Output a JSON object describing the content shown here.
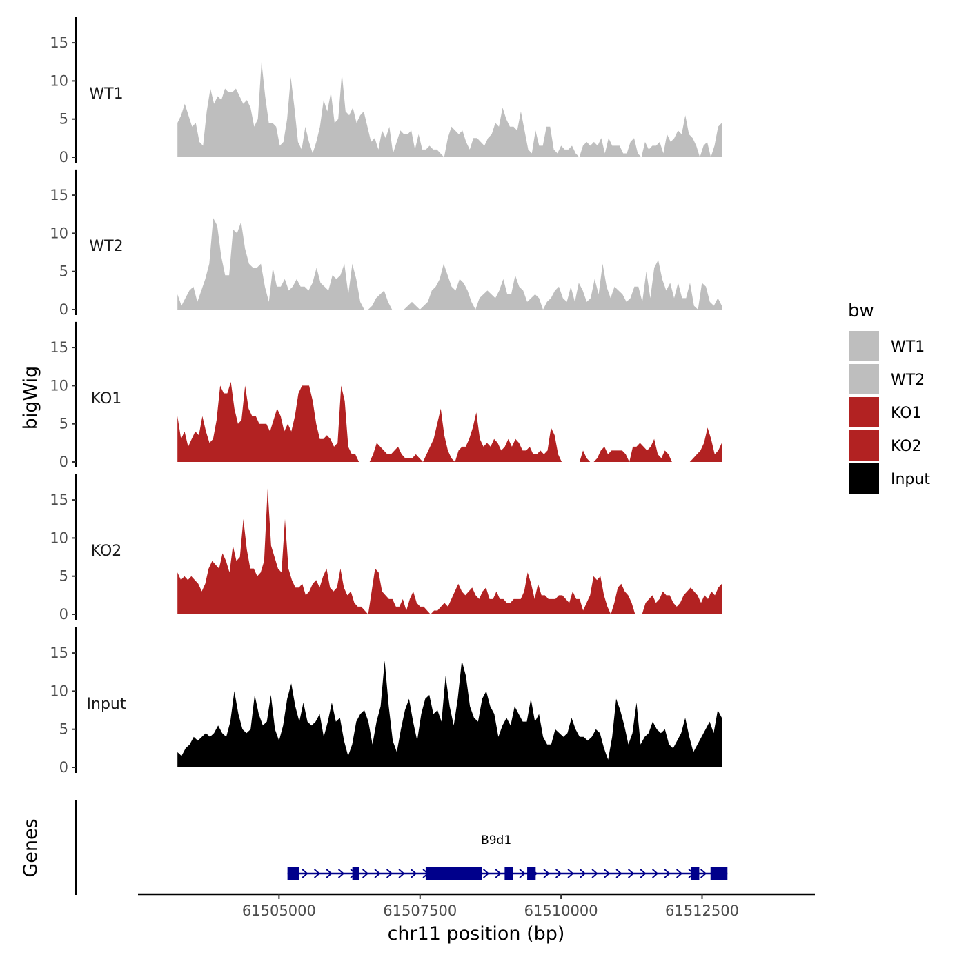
{
  "chart_data": {
    "type": "area",
    "title": "",
    "ylabel": "bigWig",
    "gene_track_label": "Genes",
    "xlabel": "chr11 position (bp)",
    "xlim": [
      61502500,
      61514500
    ],
    "data_range": [
      61503200,
      61512850
    ],
    "ylim": [
      0,
      18
    ],
    "yticks": [
      "0",
      "5",
      "10",
      "15"
    ],
    "xticks": [
      {
        "value": 61505000,
        "label": "61505000"
      },
      {
        "value": 61507500,
        "label": "61507500"
      },
      {
        "value": 61510000,
        "label": "61510000"
      },
      {
        "value": 61512500,
        "label": "61512500"
      }
    ],
    "legend": {
      "title": "bw",
      "position": "right",
      "entries": [
        {
          "label": "WT1",
          "color": "#BEBEBE"
        },
        {
          "label": "WT2",
          "color": "#BEBEBE"
        },
        {
          "label": "KO1",
          "color": "#B22222"
        },
        {
          "label": "KO2",
          "color": "#B22222"
        },
        {
          "label": "Input",
          "color": "#000000"
        }
      ]
    },
    "series": [
      {
        "name": "WT1",
        "color": "#BEBEBE",
        "values": [
          4.5,
          5.5,
          7,
          5.5,
          4,
          4.5,
          2,
          1.5,
          6,
          9,
          7,
          8,
          7.5,
          9,
          8.5,
          8.5,
          9,
          8,
          7,
          7.5,
          6.5,
          4,
          5,
          12.5,
          8,
          4.5,
          4.5,
          4,
          1.5,
          2,
          5,
          10.5,
          6.5,
          2,
          1,
          4,
          2,
          0.5,
          2,
          4,
          7.5,
          6,
          8.5,
          4.5,
          5,
          11,
          6,
          5.5,
          6.5,
          4.5,
          5.5,
          6,
          4,
          2,
          2.5,
          1,
          3.5,
          2.5,
          4,
          0.5,
          2,
          3.5,
          3,
          3,
          3.5,
          1,
          3,
          1,
          1,
          1.5,
          1,
          1,
          0.5,
          0,
          2.5,
          4,
          3.5,
          3,
          3.5,
          2,
          1,
          2.5,
          2.5,
          2,
          1.5,
          2.5,
          3,
          4.5,
          4,
          6.5,
          5,
          4,
          4,
          3.5,
          6,
          3.5,
          1,
          0.5,
          3.5,
          1.5,
          1.5,
          4,
          4,
          1,
          0.5,
          1.5,
          1,
          1,
          1.5,
          0.5,
          0,
          1.5,
          2,
          1.5,
          2,
          1.5,
          2.5,
          0.5,
          2.5,
          1.5,
          1.5,
          1.5,
          0.5,
          0.5,
          2,
          2.5,
          0.5,
          0,
          2,
          1,
          1.5,
          1.5,
          2,
          0.5,
          3,
          2,
          2.5,
          3.5,
          3,
          5.5,
          3,
          2.5,
          1.5,
          0,
          1.5,
          2,
          0,
          1.5,
          4,
          4.5
        ]
      },
      {
        "name": "WT2",
        "color": "#BEBEBE",
        "values": [
          2,
          0.5,
          1.5,
          2.5,
          3,
          1,
          2.5,
          4,
          6,
          12,
          11,
          7,
          4.5,
          4.5,
          10.5,
          10,
          11.5,
          8,
          6,
          5.5,
          5.5,
          6,
          3,
          1,
          5.5,
          3,
          3,
          4,
          2.5,
          3,
          4,
          3,
          3,
          2.5,
          3.5,
          5.5,
          3.5,
          3,
          2.5,
          4.5,
          4,
          4.5,
          6,
          2,
          6,
          4,
          1,
          0,
          0,
          0.5,
          1.5,
          2,
          2.5,
          1,
          0,
          0,
          0,
          0,
          0.5,
          1,
          0.5,
          0,
          0.5,
          1,
          2.5,
          3,
          4,
          6,
          4.5,
          3,
          2.5,
          4,
          3.5,
          2.5,
          1,
          0,
          1.5,
          2,
          2.5,
          2,
          1.5,
          2.5,
          4,
          2,
          2,
          4.5,
          3,
          2.5,
          1,
          1.5,
          2,
          1.5,
          0,
          1,
          1.5,
          2.5,
          3,
          1.5,
          1,
          3,
          1,
          3.5,
          2.5,
          1,
          1.5,
          4,
          2,
          6,
          3,
          1.5,
          3,
          2.5,
          2,
          1,
          1.5,
          3,
          3,
          1,
          5,
          1.5,
          5.5,
          6.5,
          4,
          2.5,
          3.5,
          1.5,
          3.5,
          1.5,
          1.5,
          3.5,
          0.5,
          0,
          3.5,
          3,
          1,
          0.5,
          1.5,
          0.5
        ]
      },
      {
        "name": "KO1",
        "color": "#B22222",
        "values": [
          6,
          3,
          4,
          2,
          3,
          4,
          3.5,
          6,
          4,
          2.5,
          3,
          5.5,
          10,
          9,
          9,
          10.5,
          7,
          5,
          5.5,
          10,
          7,
          6,
          6,
          5,
          5,
          5,
          4,
          5.5,
          7,
          6,
          4,
          5,
          4,
          6,
          9,
          10,
          10,
          10,
          8,
          5,
          3,
          3,
          3.5,
          3,
          2,
          2.5,
          10,
          8,
          2,
          1,
          1,
          0,
          0,
          0,
          0,
          1,
          2.5,
          2,
          1.5,
          1,
          1,
          1.5,
          2,
          1,
          0.5,
          0.5,
          0.5,
          1,
          0.5,
          0,
          1,
          2,
          3,
          5,
          7,
          3.5,
          1.5,
          0.5,
          0,
          1.5,
          2,
          2,
          3,
          4.5,
          6.5,
          3,
          2,
          2.5,
          2,
          3,
          2.5,
          1.5,
          2,
          3,
          2,
          3,
          2.5,
          1.5,
          1.5,
          2,
          1,
          1,
          1.5,
          1,
          1.5,
          4.5,
          3.5,
          1,
          0,
          0,
          0,
          0,
          0,
          0,
          1.5,
          0.5,
          0,
          0,
          0.5,
          1.5,
          2,
          1,
          1.5,
          1.5,
          1.5,
          1.5,
          1,
          0,
          2,
          2,
          2.5,
          2,
          1.5,
          2,
          3,
          1,
          0.5,
          1.5,
          1,
          0,
          0,
          0,
          0,
          0,
          0,
          0.5,
          1,
          1.5,
          2.5,
          4.5,
          3,
          1,
          1.5,
          2.5
        ]
      },
      {
        "name": "KO2",
        "color": "#B22222",
        "values": [
          5.5,
          4.5,
          5,
          4.5,
          5,
          4.5,
          4,
          3,
          4,
          6,
          7,
          6.5,
          6,
          8,
          7,
          5.5,
          9,
          7,
          7.5,
          12.5,
          8.5,
          6,
          6,
          5,
          5.5,
          7,
          16.5,
          9,
          7.5,
          6,
          5.5,
          12.5,
          6,
          4.5,
          3.5,
          3.5,
          4,
          2.5,
          3,
          4,
          4.5,
          3.5,
          5,
          6,
          3.5,
          3,
          3.5,
          6,
          3.5,
          2.5,
          3,
          1.5,
          1,
          1,
          0.5,
          0,
          3,
          6,
          5.5,
          3,
          2.5,
          2,
          2,
          1,
          1,
          2,
          0.5,
          2,
          3,
          1.5,
          1,
          1,
          0.5,
          0,
          0.5,
          0.5,
          1,
          1.5,
          1,
          2,
          3,
          4,
          3,
          2.5,
          3,
          3.5,
          2.5,
          2,
          3,
          3.5,
          2,
          2,
          3,
          2,
          2,
          1.5,
          1.5,
          2,
          2,
          2,
          3,
          5.5,
          4,
          2,
          4,
          2.5,
          2.5,
          2,
          2,
          2,
          2.5,
          2.5,
          2,
          1.5,
          3,
          2,
          2,
          0.5,
          1.5,
          2.5,
          5,
          4.5,
          5,
          2.5,
          1,
          0,
          1.5,
          3.5,
          4,
          3,
          2.5,
          1.5,
          0,
          0,
          0,
          1.5,
          2,
          2.5,
          1.5,
          2,
          3,
          2.5,
          2.5,
          1.5,
          1,
          1.5,
          2.5,
          3,
          3.5,
          3,
          2.5,
          1.5,
          2.5,
          2,
          3,
          2.5,
          3.5,
          4
        ]
      },
      {
        "name": "Input",
        "color": "#000000",
        "values": [
          2,
          1.5,
          2.5,
          3,
          4,
          3.5,
          4,
          4.5,
          4,
          4.5,
          5.5,
          4.5,
          4,
          6,
          10,
          7,
          5,
          4.5,
          5,
          9.5,
          7,
          5.5,
          6,
          9.5,
          5,
          3.5,
          5.5,
          9,
          11,
          8,
          6,
          8.5,
          6,
          5.5,
          6,
          7,
          4,
          6,
          8.5,
          6,
          6.5,
          3.5,
          1.5,
          3,
          6,
          7,
          7.5,
          6,
          3,
          6,
          8,
          14,
          8,
          3.5,
          2,
          5,
          7.5,
          9,
          6,
          3.5,
          7,
          9,
          9.5,
          7,
          7.5,
          6,
          12,
          8,
          5.5,
          9,
          14,
          12,
          8,
          6.5,
          6,
          9,
          10,
          8,
          7,
          4,
          5.5,
          6.5,
          5.5,
          8,
          7,
          6,
          6,
          9,
          6,
          7,
          4,
          3,
          3,
          5,
          4.5,
          4,
          4.5,
          6.5,
          5,
          4,
          4,
          3.5,
          4,
          5,
          4.5,
          2.5,
          1,
          4,
          9,
          7.5,
          5.5,
          3,
          4.5,
          8.5,
          3,
          4,
          4.5,
          6,
          5,
          4.5,
          5,
          3,
          2.5,
          3.5,
          4.5,
          6.5,
          4,
          2,
          3,
          4,
          5,
          6,
          4.5,
          7.5,
          6.5
        ]
      }
    ],
    "gene": {
      "name": "B9d1",
      "color": "#00008B",
      "start": 61505150,
      "end": 61512950,
      "exons": [
        [
          61505150,
          61505350
        ],
        [
          61506300,
          61506420
        ],
        [
          61507600,
          61508600
        ],
        [
          61509000,
          61509150
        ],
        [
          61509400,
          61509550
        ],
        [
          61512300,
          61512450
        ],
        [
          61512650,
          61512950
        ]
      ]
    }
  }
}
